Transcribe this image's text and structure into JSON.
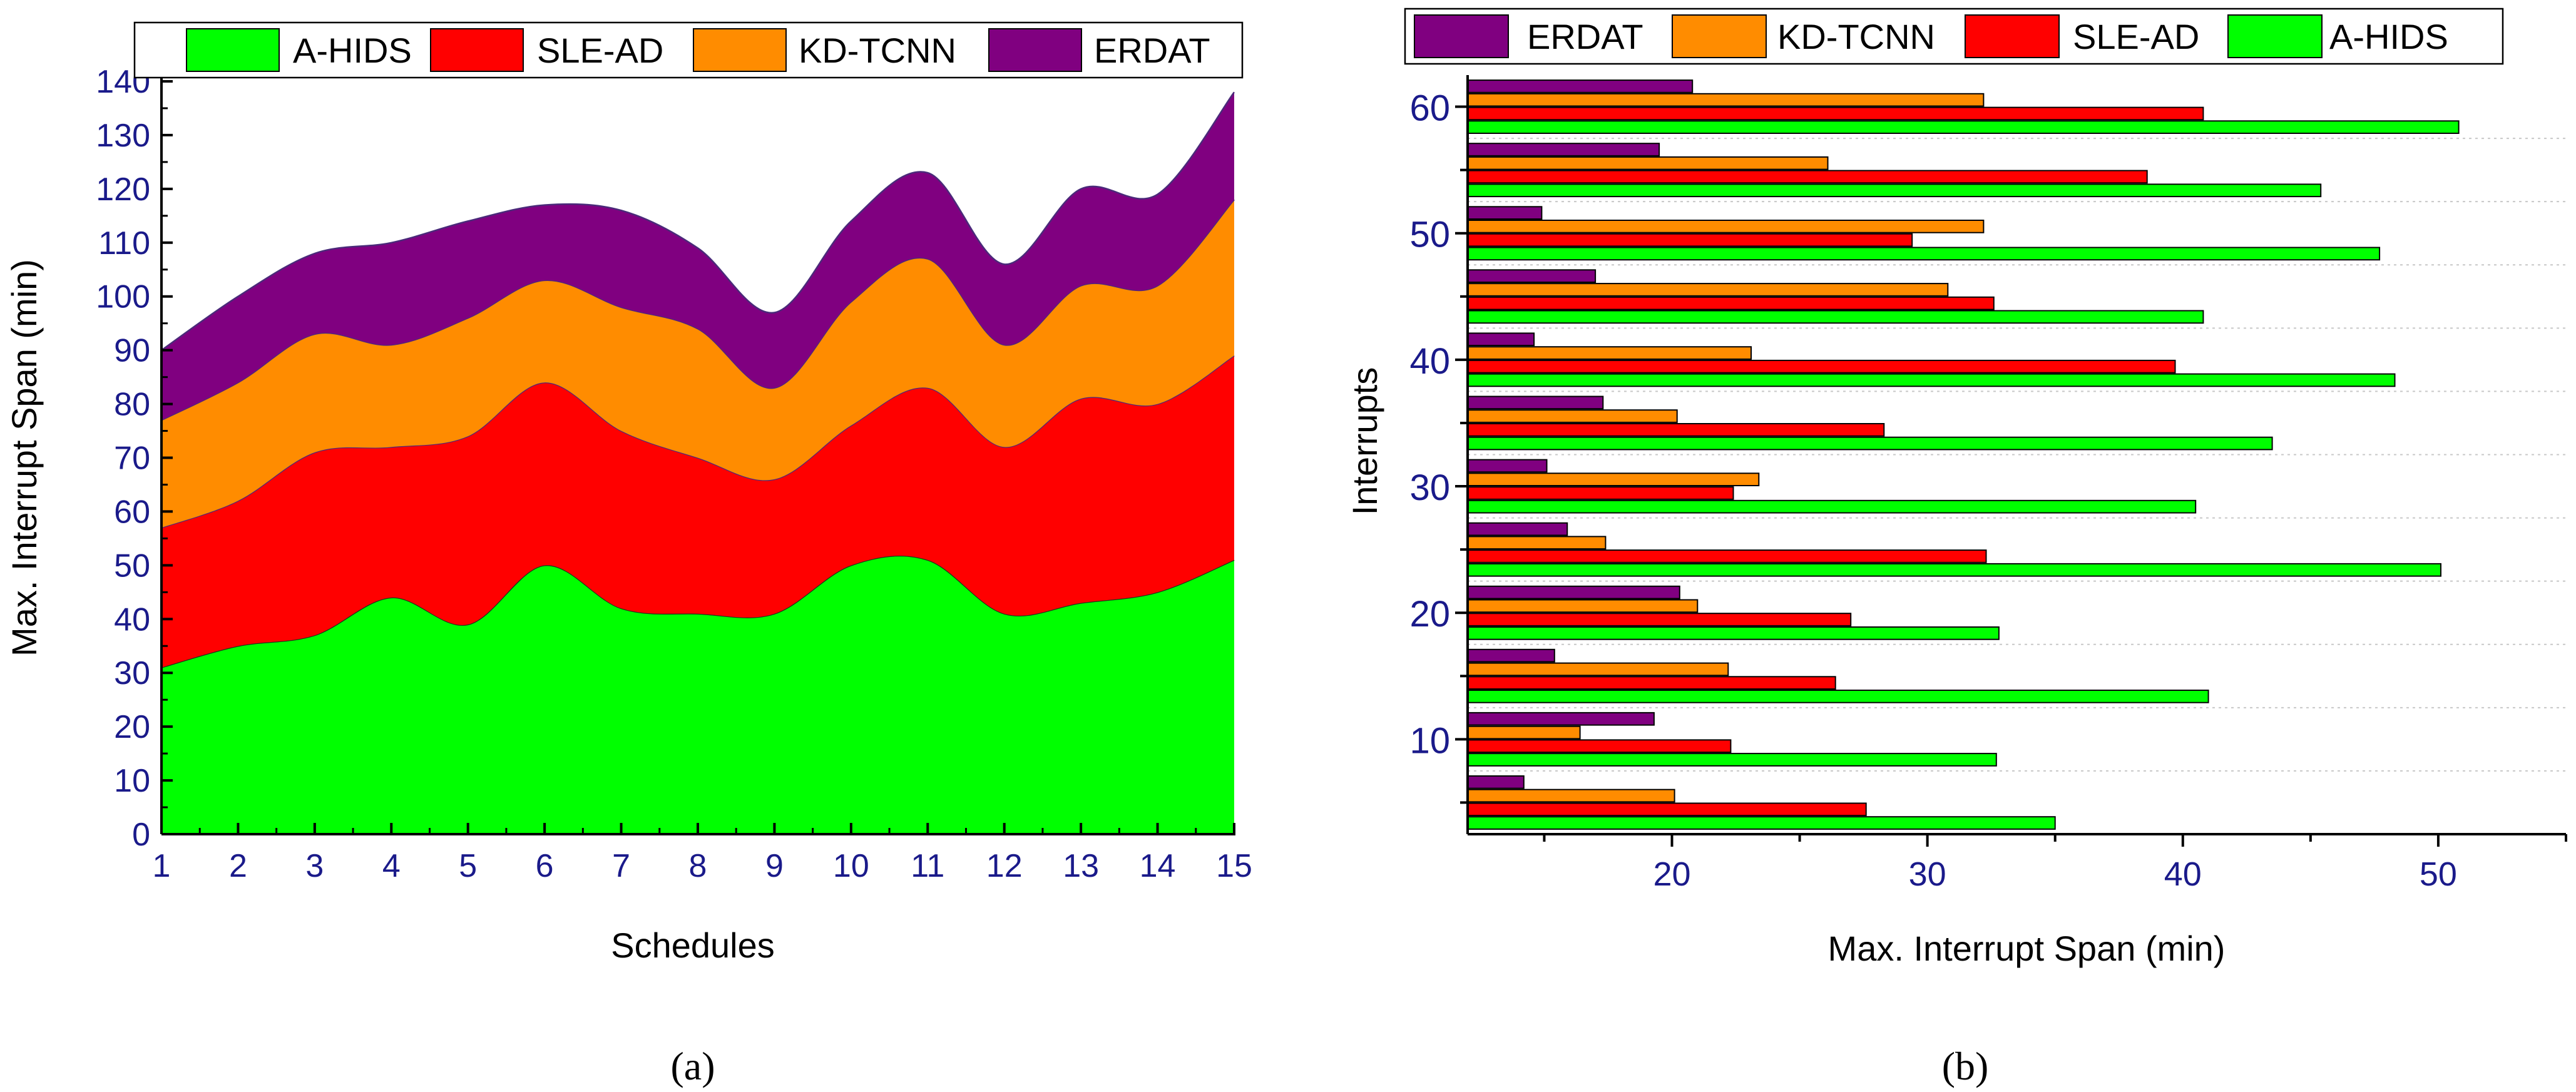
{
  "colors": {
    "A-HIDS": "#00ff00",
    "SLE-AD": "#ff0000",
    "KD-TCNN": "#ff8c00",
    "ERDAT": "#800080",
    "axis": "#000000",
    "tick_text": "#1a1a8a",
    "grid": "#c8c8c8"
  },
  "chart_data": [
    {
      "id": "a",
      "type": "area",
      "stacked": true,
      "panel_label": "(a)",
      "title": "",
      "xlabel": "Schedules",
      "ylabel": "Max. Interrupt Span (min)",
      "x": [
        1,
        2,
        3,
        4,
        5,
        6,
        7,
        8,
        9,
        10,
        11,
        12,
        13,
        14,
        15
      ],
      "xlim": [
        1,
        15
      ],
      "ylim": [
        0,
        140
      ],
      "yticks": [
        0,
        10,
        20,
        30,
        40,
        50,
        60,
        70,
        80,
        90,
        100,
        110,
        120,
        130,
        140
      ],
      "grid": false,
      "legend_position": "top",
      "legend": [
        "A-HIDS",
        "SLE-AD",
        "KD-TCNN",
        "ERDAT"
      ],
      "series": [
        {
          "name": "A-HIDS",
          "values": [
            31,
            35,
            37,
            44,
            39,
            50,
            42,
            41,
            41,
            50,
            51,
            41,
            43,
            45,
            51
          ]
        },
        {
          "name": "SLE-AD",
          "values": [
            26,
            27,
            34,
            28,
            35,
            34,
            33,
            29,
            25,
            26,
            32,
            31,
            38,
            35,
            38
          ]
        },
        {
          "name": "KD-TCNN",
          "values": [
            20,
            22,
            22,
            19,
            22,
            19,
            23,
            24,
            17,
            23,
            24,
            19,
            21,
            22,
            29
          ]
        },
        {
          "name": "ERDAT",
          "values": [
            13,
            16,
            15,
            19,
            18,
            14,
            18,
            15,
            14,
            15,
            16,
            15,
            18,
            17,
            20
          ]
        }
      ]
    },
    {
      "id": "b",
      "type": "bar",
      "orientation": "horizontal",
      "panel_label": "(b)",
      "title": "",
      "xlabel": "Max. Interrupt Span (min)",
      "ylabel": "Interrupts",
      "categories": [
        5,
        10,
        15,
        20,
        25,
        30,
        35,
        40,
        45,
        50,
        55,
        60
      ],
      "xlim": [
        12,
        55
      ],
      "xticks": [
        20,
        30,
        40,
        50
      ],
      "ylim": [
        2.5,
        62.5
      ],
      "yticks": [
        10,
        20,
        30,
        40,
        50,
        60
      ],
      "grid": true,
      "legend_position": "top",
      "legend": [
        "ERDAT",
        "KD-TCNN",
        "SLE-AD",
        "A-HIDS"
      ],
      "series": [
        {
          "name": "A-HIDS",
          "values": [
            35,
            32.7,
            41,
            32.8,
            50.1,
            40.5,
            43.5,
            48.3,
            40.8,
            47.7,
            45.4,
            50.8
          ]
        },
        {
          "name": "SLE-AD",
          "values": [
            27.6,
            22.3,
            26.4,
            27,
            32.3,
            22.4,
            28.3,
            39.7,
            32.6,
            29.4,
            38.6,
            40.8
          ]
        },
        {
          "name": "KD-TCNN",
          "values": [
            20.1,
            16.4,
            22.2,
            21,
            17.4,
            23.4,
            20.2,
            23.1,
            30.8,
            32.2,
            26.1,
            32.2
          ]
        },
        {
          "name": "ERDAT",
          "values": [
            14.2,
            19.3,
            15.4,
            20.3,
            15.9,
            15.1,
            17.3,
            14.6,
            17,
            14.9,
            19.5,
            20.8
          ]
        }
      ]
    }
  ]
}
